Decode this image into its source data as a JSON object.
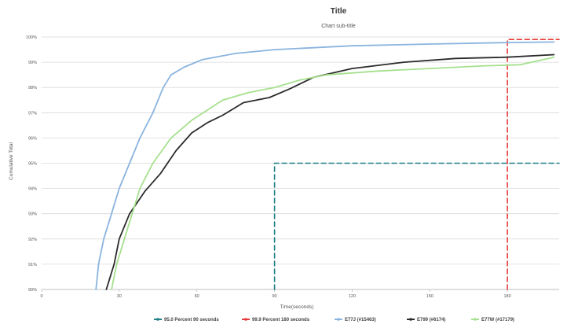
{
  "chart_data": {
    "type": "line",
    "title": "Title",
    "subtitle": "Chart sub-title",
    "xlabel": "Time(seconds)",
    "ylabel": "Cumulative Total",
    "xlim": [
      0,
      200
    ],
    "ylim": [
      90,
      100
    ],
    "x_ticks": [
      0,
      30,
      60,
      90,
      120,
      150,
      180
    ],
    "y_ticks": [
      90,
      91,
      92,
      93,
      94,
      95,
      96,
      97,
      98,
      99,
      100
    ],
    "y_tick_labels": [
      "90%",
      "91%",
      "92%",
      "93%",
      "94%",
      "95%",
      "96%",
      "97%",
      "98%",
      "99%",
      "100%"
    ],
    "grid": "horizontal",
    "legend_position": "bottom",
    "series": [
      {
        "name": "95.0 Percent 90 seconds",
        "color": "#1f7f87",
        "style": "dashed",
        "points": [
          [
            90,
            90
          ],
          [
            90,
            95
          ],
          [
            200,
            95
          ]
        ]
      },
      {
        "name": "99.9 Percent 180 seconds",
        "color": "#e83a3a",
        "style": "dashed",
        "points": [
          [
            180,
            90
          ],
          [
            180,
            99.9
          ],
          [
            200,
            99.9
          ]
        ]
      },
      {
        "name": "E77J (#15463)",
        "color": "#8ab4de",
        "style": "solid",
        "points": [
          [
            21,
            90
          ],
          [
            22,
            91
          ],
          [
            24,
            92
          ],
          [
            27,
            93
          ],
          [
            30,
            94
          ],
          [
            34,
            95
          ],
          [
            38,
            96
          ],
          [
            43,
            97
          ],
          [
            47,
            98
          ],
          [
            50,
            98.5
          ],
          [
            55,
            98.8
          ],
          [
            62,
            99.1
          ],
          [
            75,
            99.35
          ],
          [
            90,
            99.5
          ],
          [
            120,
            99.65
          ],
          [
            150,
            99.72
          ],
          [
            180,
            99.78
          ],
          [
            198,
            99.8
          ]
        ]
      },
      {
        "name": "E799 (#6174)",
        "color": "#2b2b2b",
        "style": "solid",
        "points": [
          [
            25,
            90
          ],
          [
            28,
            91
          ],
          [
            30,
            92
          ],
          [
            34,
            93
          ],
          [
            40,
            93.9
          ],
          [
            46,
            94.6
          ],
          [
            52,
            95.5
          ],
          [
            58,
            96.2
          ],
          [
            64,
            96.6
          ],
          [
            70,
            96.9
          ],
          [
            78,
            97.4
          ],
          [
            88,
            97.6
          ],
          [
            96,
            97.95
          ],
          [
            105,
            98.4
          ],
          [
            120,
            98.75
          ],
          [
            140,
            99
          ],
          [
            160,
            99.15
          ],
          [
            180,
            99.2
          ],
          [
            198,
            99.3
          ]
        ]
      },
      {
        "name": "E77W (#17179)",
        "color": "#a6e08e",
        "style": "solid",
        "points": [
          [
            27,
            90
          ],
          [
            29,
            91
          ],
          [
            32,
            92
          ],
          [
            35,
            93
          ],
          [
            38,
            94
          ],
          [
            43,
            95
          ],
          [
            50,
            96
          ],
          [
            58,
            96.7
          ],
          [
            70,
            97.5
          ],
          [
            80,
            97.8
          ],
          [
            90,
            98
          ],
          [
            100,
            98.3
          ],
          [
            110,
            98.5
          ],
          [
            130,
            98.65
          ],
          [
            150,
            98.75
          ],
          [
            170,
            98.85
          ],
          [
            185,
            98.9
          ],
          [
            198,
            99.2
          ]
        ]
      }
    ]
  }
}
